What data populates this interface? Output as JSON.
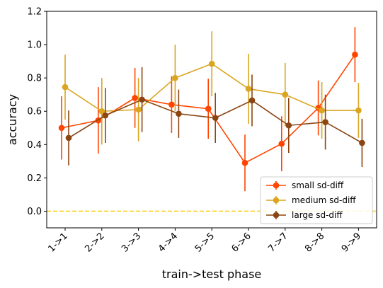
{
  "chart_data": {
    "type": "line",
    "xlabel": "train->test phase",
    "ylabel": "accuracy",
    "categories": [
      "1->1",
      "2->2",
      "3->3",
      "4->4",
      "5->5",
      "6->6",
      "7->7",
      "8->8",
      "9->9"
    ],
    "ylim": [
      -0.1,
      1.2
    ],
    "yticks": [
      0.0,
      0.2,
      0.4,
      0.6,
      0.8,
      1.0,
      1.2
    ],
    "ytick_labels": [
      "0.0",
      "0.2",
      "0.4",
      "0.6",
      "0.8",
      "1.0",
      "1.2"
    ],
    "grid": false,
    "legend_position": "bottom-right",
    "reference_line": {
      "y": 0.0,
      "color": "#FFD21F",
      "style": "dashed"
    },
    "series": [
      {
        "name": "small sd-diff",
        "color": "#FF4500",
        "values": [
          0.5,
          0.545,
          0.68,
          0.64,
          0.615,
          0.29,
          0.405,
          0.62,
          0.94
        ],
        "err": [
          0.19,
          0.2,
          0.18,
          0.17,
          0.18,
          0.17,
          0.165,
          0.165,
          0.165
        ]
      },
      {
        "name": "medium sd-diff",
        "color": "#DAA520",
        "values": [
          0.745,
          0.6,
          0.61,
          0.8,
          0.885,
          0.735,
          0.7,
          0.605,
          0.605
        ],
        "err": [
          0.195,
          0.2,
          0.19,
          0.2,
          0.195,
          0.21,
          0.19,
          0.17,
          0.165
        ]
      },
      {
        "name": "large sd-diff",
        "color": "#8B4513",
        "values": [
          0.44,
          0.575,
          0.67,
          0.585,
          0.56,
          0.665,
          0.515,
          0.535,
          0.41
        ],
        "err": [
          0.165,
          0.165,
          0.195,
          0.145,
          0.15,
          0.155,
          0.165,
          0.165,
          0.145
        ]
      }
    ]
  }
}
